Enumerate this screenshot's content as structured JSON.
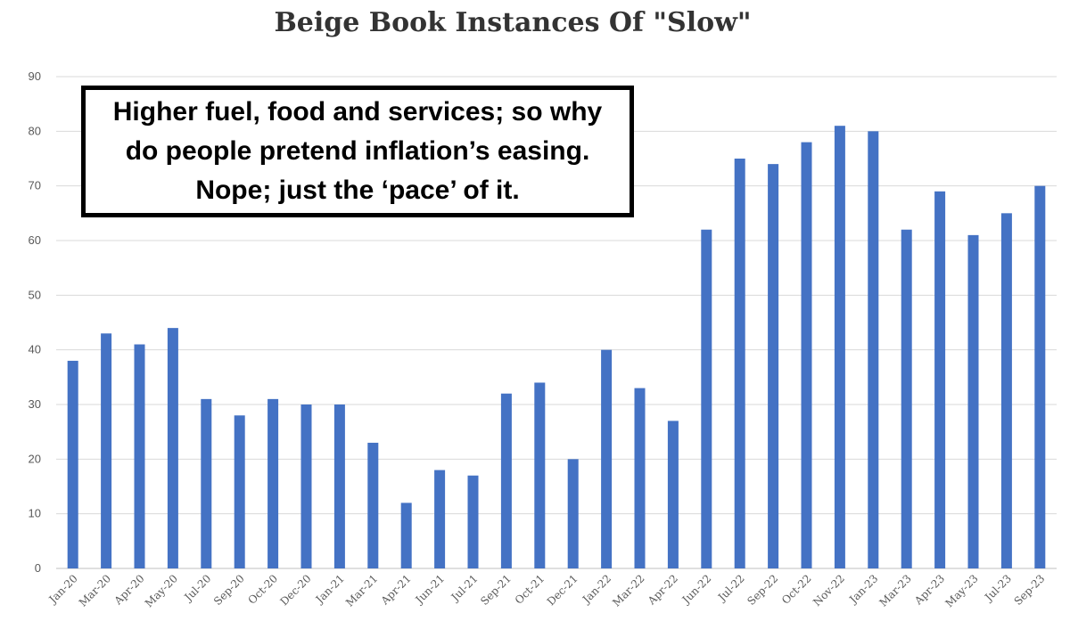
{
  "chart_data": {
    "type": "bar",
    "title": "Beige Book Instances Of  \"Slow\"",
    "xlabel": "",
    "ylabel": "",
    "ylim": [
      0,
      90
    ],
    "yticks": [
      0,
      10,
      20,
      30,
      40,
      50,
      60,
      70,
      80,
      90
    ],
    "grid": true,
    "legend": "none",
    "bar_color": "#4472c4",
    "categories": [
      "Jan-20",
      "Mar-20",
      "Apr-20",
      "May-20",
      "Jul-20",
      "Sep-20",
      "Oct-20",
      "Dec-20",
      "Jan-21",
      "Mar-21",
      "Apr-21",
      "Jun-21",
      "Jul-21",
      "Sep-21",
      "Oct-21",
      "Dec-21",
      "Jan-22",
      "Mar-22",
      "Apr-22",
      "Jun-22",
      "Jul-22",
      "Sep-22",
      "Oct-22",
      "Nov-22",
      "Jan-23",
      "Mar-23",
      "Apr-23",
      "May-23",
      "Jul-23",
      "Sep-23"
    ],
    "values": [
      38,
      43,
      41,
      44,
      31,
      28,
      31,
      30,
      30,
      23,
      12,
      18,
      17,
      32,
      34,
      20,
      40,
      33,
      27,
      62,
      75,
      74,
      78,
      81,
      80,
      62,
      69,
      61,
      65,
      70
    ],
    "annotation": "Higher fuel, food and services; so why do people pretend inflation’s easing. Nope; just the ‘pace’ of it."
  }
}
